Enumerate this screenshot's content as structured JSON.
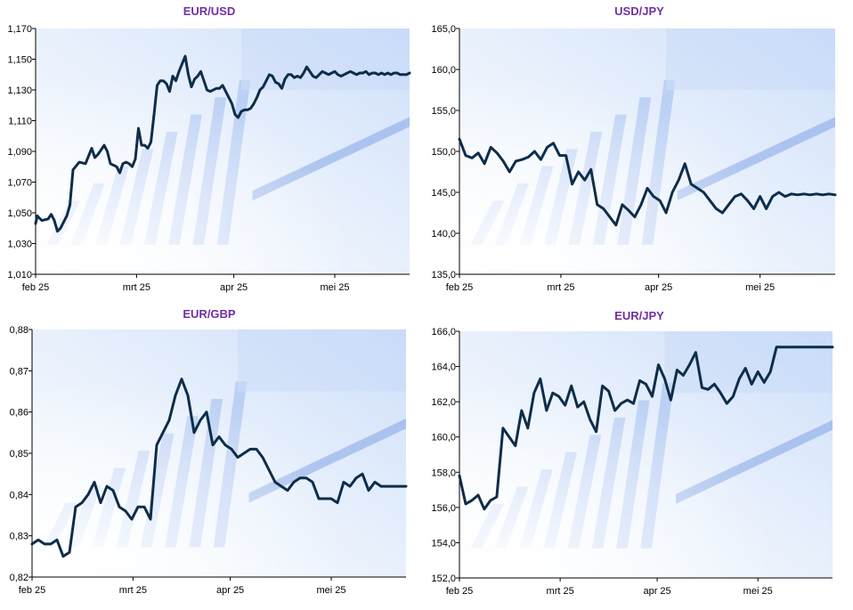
{
  "colors": {
    "title": "#7030A0",
    "line": "#0D2D4A",
    "background_tint": "#CFE0FA"
  },
  "x_axis_labels": [
    "feb 25",
    "mrt 25",
    "apr 25",
    "mei 25"
  ],
  "chart_data": [
    {
      "type": "line",
      "title": "EUR/USD",
      "x_labels": [
        "feb 25",
        "mrt 25",
        "apr 25",
        "mei 25"
      ],
      "y_ticks": [
        "1,010",
        "1,030",
        "1,050",
        "1,070",
        "1,090",
        "1,110",
        "1,130",
        "1,150",
        "1,170"
      ],
      "ylim": [
        1.01,
        1.17
      ],
      "x": [
        0,
        0.5,
        1,
        2,
        4,
        5,
        6,
        7,
        8,
        9,
        10,
        11,
        12,
        14,
        16,
        18,
        19,
        20,
        21,
        22,
        23,
        24,
        25,
        26,
        27,
        28,
        29,
        30,
        31,
        32,
        33,
        34,
        35,
        36,
        37,
        38,
        39,
        40,
        41,
        42,
        43,
        44,
        45,
        46,
        47,
        48,
        49,
        50,
        51,
        52,
        53,
        54,
        55,
        56,
        57,
        58,
        59,
        60,
        61,
        62,
        63,
        64,
        65,
        66,
        67,
        68,
        69,
        70,
        71,
        72,
        73,
        74,
        75,
        76,
        77,
        78,
        79,
        80,
        81,
        82,
        83,
        84,
        85,
        86,
        87,
        88,
        89,
        90,
        91,
        92,
        93,
        94,
        95,
        96,
        97,
        98,
        99,
        100,
        101,
        102,
        103,
        104,
        105,
        106,
        107,
        108,
        109,
        110,
        111,
        112,
        113,
        114,
        115,
        116,
        117,
        118,
        119,
        120
      ],
      "values": [
        1.043,
        1.048,
        1.047,
        1.045,
        1.046,
        1.049,
        1.045,
        1.038,
        1.04,
        1.044,
        1.048,
        1.055,
        1.078,
        1.083,
        1.082,
        1.092,
        1.086,
        1.088,
        1.091,
        1.094,
        1.09,
        1.082,
        1.081,
        1.08,
        1.076,
        1.082,
        1.083,
        1.082,
        1.08,
        1.085,
        1.105,
        1.094,
        1.094,
        1.092,
        1.096,
        1.114,
        1.133,
        1.136,
        1.136,
        1.134,
        1.129,
        1.139,
        1.136,
        1.142,
        1.147,
        1.152,
        1.14,
        1.132,
        1.137,
        1.139,
        1.142,
        1.136,
        1.13,
        1.129,
        1.13,
        1.131,
        1.131,
        1.133,
        1.129,
        1.125,
        1.121,
        1.114,
        1.112,
        1.116,
        1.117,
        1.117,
        1.118,
        1.121,
        1.125,
        1.13,
        1.132,
        1.136,
        1.14,
        1.139,
        1.135,
        1.134,
        1.131,
        1.137,
        1.14,
        1.14,
        1.138,
        1.139,
        1.138,
        1.141,
        1.145,
        1.142,
        1.139,
        1.138,
        1.14,
        1.142,
        1.141,
        1.14,
        1.141,
        1.142,
        1.14,
        1.139,
        1.14,
        1.141,
        1.142,
        1.141,
        1.14,
        1.141,
        1.141,
        1.142,
        1.14,
        1.141,
        1.141,
        1.14,
        1.141,
        1.14,
        1.141,
        1.14,
        1.141,
        1.141,
        1.14,
        1.14,
        1.14,
        1.141
      ]
    },
    {
      "type": "line",
      "title": "USD/JPY",
      "x_labels": [
        "feb 25",
        "mrt 25",
        "apr 25",
        "mei 25"
      ],
      "y_ticks": [
        "135,0",
        "140,0",
        "145,0",
        "150,0",
        "155,0",
        "160,0",
        "165,0"
      ],
      "ylim": [
        135,
        165
      ],
      "x": [
        0,
        2,
        4,
        6,
        8,
        10,
        12,
        14,
        16,
        18,
        20,
        22,
        24,
        26,
        28,
        30,
        32,
        34,
        36,
        38,
        40,
        42,
        44,
        46,
        48,
        50,
        52,
        54,
        56,
        58,
        60,
        62,
        64,
        66,
        68,
        70,
        72,
        74,
        76,
        78,
        80,
        82,
        84,
        86,
        88,
        90,
        92,
        94,
        96,
        98,
        100,
        102,
        104,
        106,
        108,
        110,
        112,
        114,
        116,
        118,
        120
      ],
      "values": [
        151.5,
        149.5,
        149.2,
        149.8,
        148.5,
        150.5,
        149.8,
        148.8,
        147.5,
        148.8,
        149.0,
        149.3,
        150.0,
        149.0,
        150.5,
        151.0,
        149.5,
        149.5,
        146.0,
        147.5,
        146.5,
        147.8,
        143.5,
        143.0,
        142.0,
        141.0,
        143.5,
        142.8,
        142.0,
        143.5,
        145.5,
        144.5,
        144.0,
        142.5,
        145.0,
        146.5,
        148.5,
        146.0,
        145.5,
        145.0,
        144.0,
        143.0,
        142.5,
        143.5,
        144.5,
        144.8,
        144.0,
        143.0,
        144.5,
        143.0,
        144.5,
        145.0,
        144.5,
        144.8,
        144.7,
        144.8,
        144.7,
        144.8,
        144.7,
        144.8,
        144.7
      ]
    },
    {
      "type": "line",
      "title": "EUR/GBP",
      "x_labels": [
        "feb 25",
        "mrt 25",
        "apr 25",
        "mei 25"
      ],
      "y_ticks": [
        "0,82",
        "0,83",
        "0,84",
        "0,85",
        "0,86",
        "0,87",
        "0,88"
      ],
      "ylim": [
        0.82,
        0.88
      ],
      "x": [
        0,
        2,
        4,
        6,
        8,
        10,
        12,
        14,
        16,
        18,
        20,
        22,
        24,
        26,
        28,
        30,
        32,
        34,
        36,
        38,
        40,
        42,
        44,
        46,
        48,
        50,
        52,
        54,
        56,
        58,
        60,
        62,
        64,
        66,
        68,
        70,
        72,
        74,
        76,
        78,
        80,
        82,
        84,
        86,
        88,
        90,
        92,
        94,
        96,
        98,
        100,
        102,
        104,
        106,
        108,
        110,
        112,
        114,
        116,
        118,
        120
      ],
      "values": [
        0.828,
        0.829,
        0.828,
        0.828,
        0.829,
        0.825,
        0.826,
        0.837,
        0.838,
        0.84,
        0.843,
        0.838,
        0.842,
        0.841,
        0.837,
        0.836,
        0.834,
        0.837,
        0.837,
        0.834,
        0.852,
        0.855,
        0.858,
        0.864,
        0.868,
        0.864,
        0.855,
        0.858,
        0.86,
        0.852,
        0.854,
        0.852,
        0.851,
        0.849,
        0.85,
        0.851,
        0.851,
        0.849,
        0.846,
        0.843,
        0.842,
        0.841,
        0.843,
        0.844,
        0.844,
        0.843,
        0.839,
        0.839,
        0.839,
        0.838,
        0.843,
        0.842,
        0.844,
        0.845,
        0.841,
        0.843,
        0.842,
        0.842,
        0.842,
        0.842,
        0.842
      ]
    },
    {
      "type": "line",
      "title": "EUR/JPY",
      "x_labels": [
        "feb 25",
        "mrt 25",
        "apr 25",
        "mei 25"
      ],
      "y_ticks": [
        "152,0",
        "154,0",
        "156,0",
        "158,0",
        "160,0",
        "162,0",
        "164,0",
        "166,0"
      ],
      "ylim": [
        152,
        166
      ],
      "x": [
        0,
        2,
        4,
        6,
        8,
        10,
        12,
        14,
        16,
        18,
        20,
        22,
        24,
        26,
        28,
        30,
        32,
        34,
        36,
        38,
        40,
        42,
        44,
        46,
        48,
        50,
        52,
        54,
        56,
        58,
        60,
        62,
        64,
        66,
        68,
        70,
        72,
        74,
        76,
        78,
        80,
        82,
        84,
        86,
        88,
        90,
        92,
        94,
        96,
        98,
        100,
        102,
        104,
        106,
        108,
        110,
        112,
        114,
        116,
        118,
        120
      ],
      "values": [
        157.8,
        156.2,
        156.4,
        156.7,
        155.9,
        156.4,
        156.6,
        160.5,
        160.0,
        159.5,
        161.5,
        160.5,
        162.5,
        163.3,
        161.5,
        162.5,
        162.3,
        161.8,
        162.9,
        161.7,
        162.0,
        161.0,
        160.3,
        162.9,
        162.6,
        161.5,
        161.9,
        162.1,
        161.9,
        163.2,
        163.0,
        162.3,
        164.1,
        163.3,
        162.1,
        163.8,
        163.5,
        164.1,
        164.8,
        162.8,
        162.7,
        163.0,
        162.5,
        161.9,
        162.3,
        163.3,
        163.9,
        163.0,
        163.7,
        163.1,
        163.7,
        165.1,
        165.1,
        165.1,
        165.1,
        165.1,
        165.1,
        165.1,
        165.1,
        165.1,
        165.1
      ]
    }
  ]
}
